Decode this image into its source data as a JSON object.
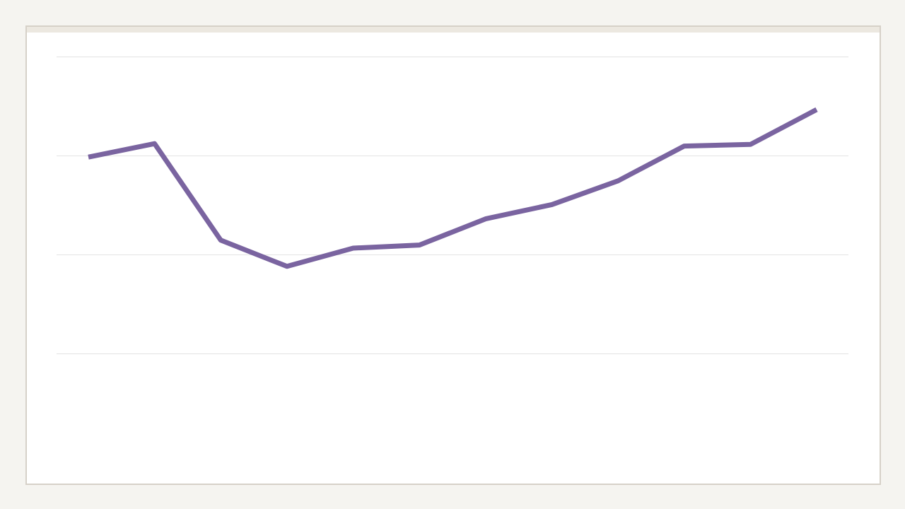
{
  "colors": {
    "page_background": "#f5f4f0",
    "frame_border": "#d6d1c8",
    "header_strip": "#ece8e0",
    "gridline": "#e3e3e3",
    "series_line": "#7a64a0"
  },
  "chart_data": {
    "type": "line",
    "title": "",
    "xlabel": "",
    "ylabel": "",
    "grid": true,
    "legend": "none",
    "ylim": [
      0,
      100
    ],
    "gridlines_at": [
      25,
      50,
      75,
      100
    ],
    "x": [
      1,
      2,
      3,
      4,
      5,
      6,
      7,
      8,
      9,
      10,
      11,
      12
    ],
    "series": [
      {
        "values": [
          74.6,
          78,
          53.6,
          47,
          51.6,
          52.4,
          59,
          62.6,
          68.6,
          77.4,
          77.8,
          86.6
        ]
      }
    ]
  }
}
